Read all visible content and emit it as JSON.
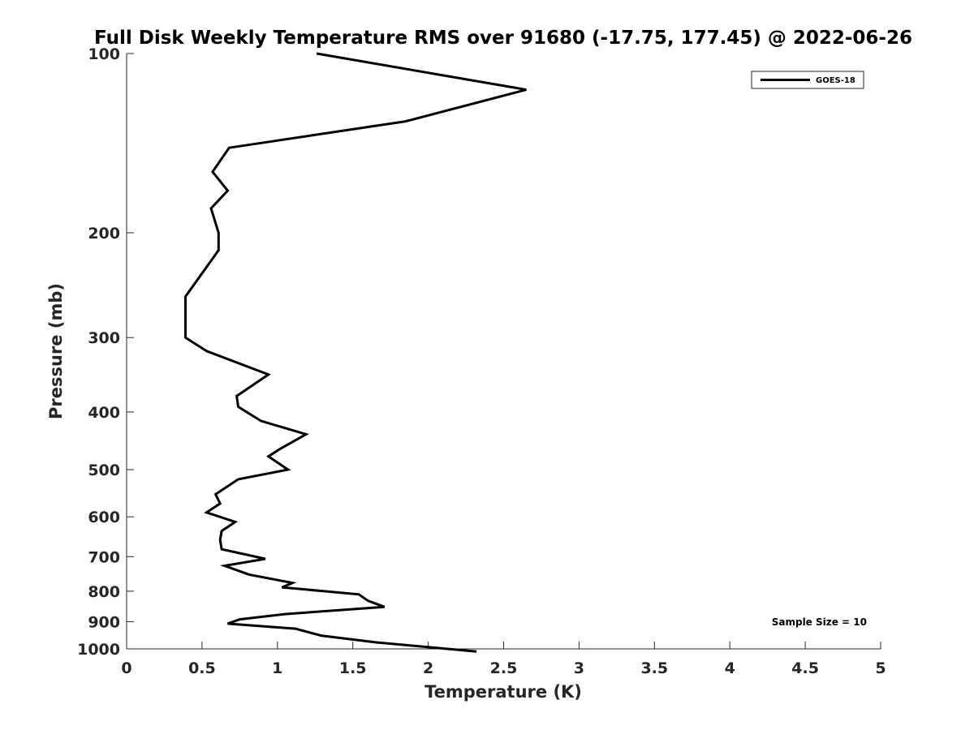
{
  "chart_data": {
    "type": "line",
    "title": "Full Disk Weekly Temperature RMS over 91680 (-17.75, 177.45) @ 2022-06-26",
    "xlabel": "Temperature (K)",
    "ylabel": "Pressure (mb)",
    "xlim": [
      0,
      5
    ],
    "ylim": [
      100,
      1000
    ],
    "y_scale": "log",
    "y_reversed": true,
    "x_ticks": [
      "0",
      "0.5",
      "1",
      "1.5",
      "2",
      "2.5",
      "3",
      "3.5",
      "4",
      "4.5",
      "5"
    ],
    "y_ticks": [
      "100",
      "200",
      "300",
      "400",
      "500",
      "600",
      "700",
      "800",
      "900",
      "1000"
    ],
    "grid": false,
    "legend": {
      "placement": "top-right",
      "entries": [
        "GOES-18"
      ]
    },
    "annotation": "Sample Size = 10",
    "series": [
      {
        "name": "GOES-18",
        "color": "#000000",
        "x": [
          1.26,
          2.65,
          1.85,
          0.68,
          0.57,
          0.67,
          0.56,
          0.61,
          0.61,
          0.39,
          0.39,
          0.53,
          0.94,
          0.73,
          0.74,
          0.89,
          1.19,
          1.02,
          0.94,
          1.07,
          0.74,
          0.59,
          0.62,
          0.53,
          0.72,
          0.63,
          0.62,
          0.63,
          0.92,
          0.65,
          0.81,
          1.1,
          1.03,
          1.54,
          1.6,
          1.71,
          1.05,
          0.75,
          0.67,
          1.12,
          1.29,
          1.65,
          2.32
        ],
        "y": [
          100,
          115,
          130,
          144,
          158,
          170,
          182,
          200,
          214,
          256,
          300,
          316,
          346,
          376,
          392,
          414,
          436,
          461,
          475,
          500,
          519,
          550,
          570,
          590,
          612,
          634,
          656,
          680,
          706,
          725,
          750,
          775,
          788,
          810,
          830,
          850,
          874,
          892,
          907,
          925,
          950,
          975,
          1010
        ]
      }
    ]
  }
}
